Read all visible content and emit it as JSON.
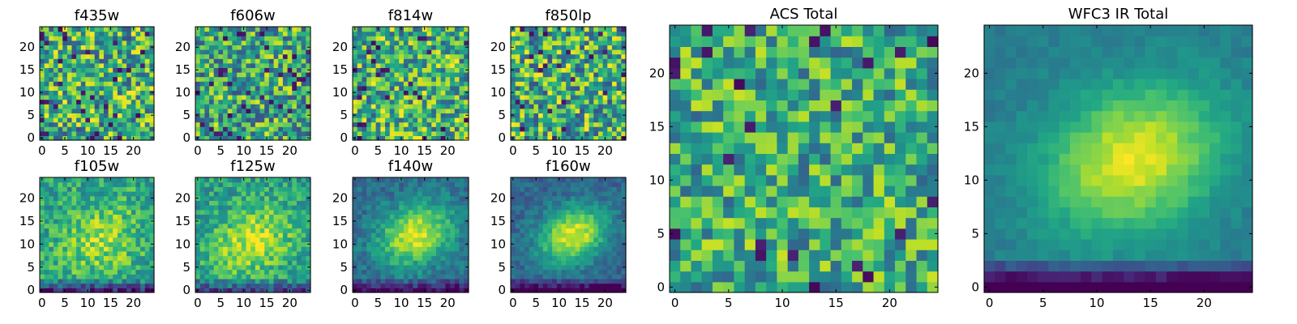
{
  "figure": {
    "colormap": "viridis"
  },
  "chart_data": [
    {
      "type": "heatmap",
      "title": "f435w",
      "grid_size": 25,
      "xlim": [
        0,
        24
      ],
      "ylim": [
        0,
        24
      ],
      "x_ticks": [
        "0",
        "5",
        "10",
        "15",
        "20"
      ],
      "y_ticks": [
        "0",
        "5",
        "10",
        "15",
        "20"
      ],
      "field": {
        "model": "noise",
        "seed": 11,
        "base": 0.62,
        "spread": 0.38,
        "dark_fraction": 0.05
      }
    },
    {
      "type": "heatmap",
      "title": "f606w",
      "grid_size": 25,
      "xlim": [
        0,
        24
      ],
      "ylim": [
        0,
        24
      ],
      "x_ticks": [
        "0",
        "5",
        "10",
        "15",
        "20"
      ],
      "y_ticks": [
        "0",
        "5",
        "10",
        "15",
        "20"
      ],
      "field": {
        "model": "noise",
        "seed": 23,
        "base": 0.6,
        "spread": 0.36,
        "dark_fraction": 0.05
      }
    },
    {
      "type": "heatmap",
      "title": "f814w",
      "grid_size": 25,
      "xlim": [
        0,
        24
      ],
      "ylim": [
        0,
        24
      ],
      "x_ticks": [
        "0",
        "5",
        "10",
        "15",
        "20"
      ],
      "y_ticks": [
        "0",
        "5",
        "10",
        "15",
        "20"
      ],
      "field": {
        "model": "noise",
        "seed": 37,
        "base": 0.64,
        "spread": 0.36,
        "dark_fraction": 0.05
      }
    },
    {
      "type": "heatmap",
      "title": "f850lp",
      "grid_size": 25,
      "xlim": [
        0,
        24
      ],
      "ylim": [
        0,
        24
      ],
      "x_ticks": [
        "0",
        "5",
        "10",
        "15",
        "20"
      ],
      "y_ticks": [
        "0",
        "5",
        "10",
        "15",
        "20"
      ],
      "field": {
        "model": "noise",
        "seed": 41,
        "base": 0.62,
        "spread": 0.38,
        "dark_fraction": 0.05
      }
    },
    {
      "type": "heatmap",
      "title": "f105w",
      "grid_size": 25,
      "xlim": [
        0,
        24
      ],
      "ylim": [
        0,
        24
      ],
      "x_ticks": [
        "0",
        "5",
        "10",
        "15",
        "20"
      ],
      "y_ticks": [
        "0",
        "5",
        "10",
        "15",
        "20"
      ],
      "field": {
        "model": "blob",
        "seed": 53,
        "base": 0.58,
        "peak": 0.28,
        "center": [
          13,
          11
        ],
        "sigma": 6,
        "noise": 0.2,
        "bottom_dark": 0.45
      }
    },
    {
      "type": "heatmap",
      "title": "f125w",
      "grid_size": 25,
      "xlim": [
        0,
        24
      ],
      "ylim": [
        0,
        24
      ],
      "x_ticks": [
        "0",
        "5",
        "10",
        "15",
        "20"
      ],
      "y_ticks": [
        "0",
        "5",
        "10",
        "15",
        "20"
      ],
      "field": {
        "model": "blob",
        "seed": 67,
        "base": 0.55,
        "peak": 0.38,
        "center": [
          12,
          11
        ],
        "sigma": 6,
        "noise": 0.18,
        "bottom_dark": 0.35
      }
    },
    {
      "type": "heatmap",
      "title": "f140w",
      "grid_size": 25,
      "xlim": [
        0,
        24
      ],
      "ylim": [
        0,
        24
      ],
      "x_ticks": [
        "0",
        "5",
        "10",
        "15",
        "20"
      ],
      "y_ticks": [
        "0",
        "5",
        "10",
        "15",
        "20"
      ],
      "field": {
        "model": "blob",
        "seed": 79,
        "base": 0.35,
        "peak": 0.6,
        "center": [
          13,
          12
        ],
        "sigma": 5.5,
        "noise": 0.12,
        "bottom_dark": 0.35
      }
    },
    {
      "type": "heatmap",
      "title": "f160w",
      "grid_size": 25,
      "xlim": [
        0,
        24
      ],
      "ylim": [
        0,
        24
      ],
      "x_ticks": [
        "0",
        "5",
        "10",
        "15",
        "20"
      ],
      "y_ticks": [
        "0",
        "5",
        "10",
        "15",
        "20"
      ],
      "field": {
        "model": "blob",
        "seed": 83,
        "base": 0.32,
        "peak": 0.65,
        "center": [
          13,
          12
        ],
        "sigma": 5,
        "noise": 0.1,
        "bottom_dark": 0.4
      }
    },
    {
      "type": "heatmap",
      "title": "ACS Total",
      "grid_size": 25,
      "xlim": [
        0,
        24
      ],
      "ylim": [
        0,
        24
      ],
      "x_ticks": [
        "0",
        "5",
        "10",
        "15",
        "20"
      ],
      "y_ticks": [
        "0",
        "5",
        "10",
        "15",
        "20"
      ],
      "field": {
        "model": "noise",
        "seed": 97,
        "base": 0.62,
        "spread": 0.3,
        "dark_fraction": 0.04
      }
    },
    {
      "type": "heatmap",
      "title": "WFC3 IR Total",
      "grid_size": 25,
      "xlim": [
        0,
        24
      ],
      "ylim": [
        0,
        24
      ],
      "x_ticks": [
        "0",
        "5",
        "10",
        "15",
        "20"
      ],
      "y_ticks": [
        "0",
        "5",
        "10",
        "15",
        "20"
      ],
      "field": {
        "model": "blob",
        "seed": 101,
        "base": 0.42,
        "peak": 0.55,
        "center": [
          13.5,
          12
        ],
        "sigma": 5.5,
        "noise": 0.05,
        "bottom_dark": 0.55
      }
    }
  ]
}
